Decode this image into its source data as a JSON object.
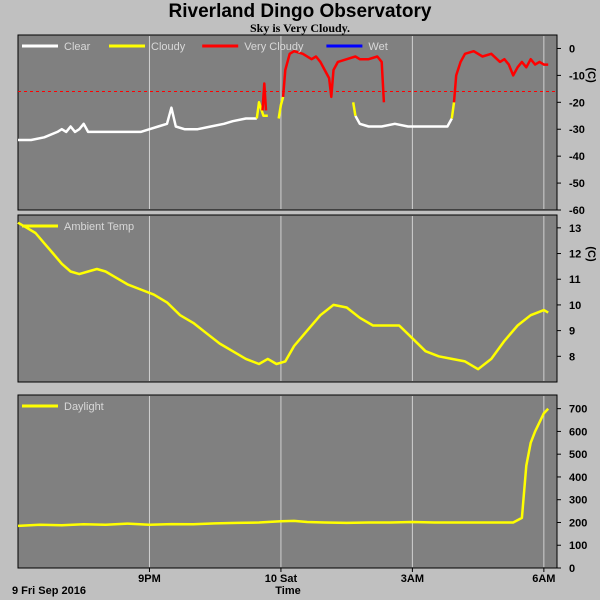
{
  "header": {
    "title": "Riverland Dingo Observatory",
    "subtitle": "Sky is Very Cloudy."
  },
  "colors": {
    "plot_bg": "#808080",
    "page_bg": "#c0c0c0",
    "grid": "#d0d0d0",
    "clear": "#ffffff",
    "cloudy": "#ffff00",
    "very_cloudy": "#ff0000",
    "wet": "#0000ff",
    "threshold": "#ff0000"
  },
  "x_axis": {
    "title": "Time",
    "start_label": "9 Fri Sep 2016",
    "tick_labels": [
      "9PM",
      "10 Sat",
      "3AM",
      "6AM"
    ],
    "tick_hours": [
      3,
      6,
      9,
      12
    ],
    "range_hours": [
      0,
      12.3
    ]
  },
  "chart_data": [
    {
      "type": "line",
      "id": "sky",
      "legend": [
        "Clear",
        "Cloudy",
        "Very Cloudy",
        "Wet"
      ],
      "yunit": "(C)",
      "ylim": [
        -60,
        5
      ],
      "yticks": [
        0,
        -10,
        -20,
        -30,
        -40,
        -50,
        -60
      ],
      "threshold": -16,
      "series": [
        {
          "name": "Clear",
          "segments": [
            [
              [
                0.0,
                -34
              ],
              [
                0.3,
                -34
              ],
              [
                0.6,
                -33
              ],
              [
                0.9,
                -31
              ],
              [
                1.0,
                -30
              ],
              [
                1.1,
                -31
              ],
              [
                1.2,
                -29
              ],
              [
                1.3,
                -31
              ],
              [
                1.4,
                -30
              ],
              [
                1.5,
                -28
              ],
              [
                1.6,
                -31
              ],
              [
                1.9,
                -31
              ],
              [
                2.2,
                -31
              ],
              [
                2.5,
                -31
              ],
              [
                2.8,
                -31
              ],
              [
                3.0,
                -30
              ],
              [
                3.2,
                -29
              ],
              [
                3.4,
                -28
              ],
              [
                3.5,
                -22
              ],
              [
                3.6,
                -29
              ],
              [
                3.8,
                -30
              ],
              [
                4.1,
                -30
              ],
              [
                4.4,
                -29
              ],
              [
                4.7,
                -28
              ],
              [
                4.9,
                -27
              ],
              [
                5.2,
                -26
              ],
              [
                5.45,
                -26
              ]
            ],
            [
              [
                7.7,
                -25
              ],
              [
                7.8,
                -28
              ],
              [
                8.0,
                -29
              ],
              [
                8.3,
                -29
              ],
              [
                8.6,
                -28
              ],
              [
                8.9,
                -29
              ],
              [
                9.2,
                -29
              ],
              [
                9.6,
                -29
              ],
              [
                9.8,
                -29
              ],
              [
                9.9,
                -26
              ]
            ]
          ]
        },
        {
          "name": "Cloudy",
          "segments": [
            [
              [
                5.45,
                -26
              ],
              [
                5.5,
                -20
              ],
              [
                5.6,
                -25
              ],
              [
                5.7,
                -25
              ]
            ],
            [
              [
                5.95,
                -26
              ],
              [
                6.0,
                -21
              ],
              [
                6.05,
                -18
              ]
            ],
            [
              [
                7.65,
                -20
              ],
              [
                7.7,
                -25
              ]
            ],
            [
              [
                9.9,
                -26
              ],
              [
                9.95,
                -20
              ]
            ]
          ]
        },
        {
          "name": "Very Cloudy",
          "segments": [
            [
              [
                5.58,
                -23
              ],
              [
                5.62,
                -13
              ],
              [
                5.66,
                -23
              ]
            ],
            [
              [
                6.05,
                -18
              ],
              [
                6.1,
                -8
              ],
              [
                6.2,
                -2
              ],
              [
                6.3,
                -1
              ],
              [
                6.5,
                -2
              ],
              [
                6.7,
                -4
              ],
              [
                6.8,
                -3
              ],
              [
                6.9,
                -5
              ],
              [
                7.0,
                -8
              ],
              [
                7.1,
                -11
              ],
              [
                7.15,
                -18
              ],
              [
                7.2,
                -8
              ],
              [
                7.3,
                -5
              ],
              [
                7.5,
                -4
              ],
              [
                7.7,
                -3
              ],
              [
                7.8,
                -4
              ],
              [
                8.0,
                -4
              ],
              [
                8.2,
                -3
              ],
              [
                8.3,
                -5
              ],
              [
                8.35,
                -20
              ]
            ],
            [
              [
                9.95,
                -20
              ],
              [
                10.0,
                -10
              ],
              [
                10.1,
                -5
              ],
              [
                10.2,
                -2
              ],
              [
                10.4,
                -1
              ],
              [
                10.6,
                -3
              ],
              [
                10.8,
                -2
              ],
              [
                11.0,
                -5
              ],
              [
                11.1,
                -4
              ],
              [
                11.2,
                -6
              ],
              [
                11.3,
                -10
              ],
              [
                11.4,
                -7
              ],
              [
                11.5,
                -5
              ],
              [
                11.6,
                -7
              ],
              [
                11.7,
                -4
              ],
              [
                11.8,
                -6
              ],
              [
                11.9,
                -5
              ],
              [
                12.0,
                -6
              ],
              [
                12.1,
                -6
              ]
            ]
          ]
        },
        {
          "name": "Wet",
          "segments": []
        }
      ]
    },
    {
      "type": "line",
      "id": "ambient",
      "legend": [
        "Ambient Temp"
      ],
      "yunit": "(C)",
      "ylim": [
        7,
        13.5
      ],
      "yticks": [
        8,
        9,
        10,
        11,
        12,
        13
      ],
      "series": [
        {
          "name": "Ambient Temp",
          "x": [
            0.0,
            0.2,
            0.4,
            0.6,
            0.8,
            1.0,
            1.2,
            1.4,
            1.6,
            1.8,
            2.0,
            2.2,
            2.5,
            2.8,
            3.1,
            3.4,
            3.7,
            4.0,
            4.3,
            4.6,
            4.9,
            5.2,
            5.5,
            5.7,
            5.9,
            6.1,
            6.3,
            6.6,
            6.9,
            7.2,
            7.5,
            7.8,
            8.1,
            8.4,
            8.7,
            9.0,
            9.3,
            9.6,
            9.9,
            10.2,
            10.5,
            10.8,
            11.1,
            11.4,
            11.7,
            12.0,
            12.1
          ],
          "y": [
            13.2,
            13.0,
            12.8,
            12.4,
            12.0,
            11.6,
            11.3,
            11.2,
            11.3,
            11.4,
            11.3,
            11.1,
            10.8,
            10.6,
            10.4,
            10.1,
            9.6,
            9.3,
            8.9,
            8.5,
            8.2,
            7.9,
            7.7,
            7.9,
            7.7,
            7.8,
            8.4,
            9.0,
            9.6,
            10.0,
            9.9,
            9.5,
            9.2,
            9.2,
            9.2,
            8.7,
            8.2,
            8.0,
            7.9,
            7.8,
            7.5,
            7.9,
            8.6,
            9.2,
            9.6,
            9.8,
            9.7
          ]
        }
      ]
    },
    {
      "type": "line",
      "id": "daylight",
      "legend": [
        "Daylight"
      ],
      "yunit": "",
      "ylim": [
        0,
        760
      ],
      "yticks": [
        0,
        100,
        200,
        300,
        400,
        500,
        600,
        700
      ],
      "series": [
        {
          "name": "Daylight",
          "x": [
            0.0,
            0.5,
            1.0,
            1.5,
            2.0,
            2.5,
            3.0,
            3.5,
            4.0,
            4.5,
            5.0,
            5.5,
            6.0,
            6.3,
            6.6,
            7.0,
            7.5,
            8.0,
            8.5,
            9.0,
            9.5,
            10.0,
            10.5,
            11.0,
            11.3,
            11.5,
            11.6,
            11.7,
            11.8,
            11.9,
            12.0,
            12.1
          ],
          "y": [
            185,
            190,
            188,
            192,
            190,
            195,
            190,
            193,
            192,
            196,
            198,
            200,
            205,
            207,
            202,
            200,
            198,
            200,
            200,
            202,
            200,
            200,
            200,
            200,
            200,
            220,
            450,
            550,
            600,
            640,
            680,
            700
          ]
        }
      ]
    }
  ]
}
